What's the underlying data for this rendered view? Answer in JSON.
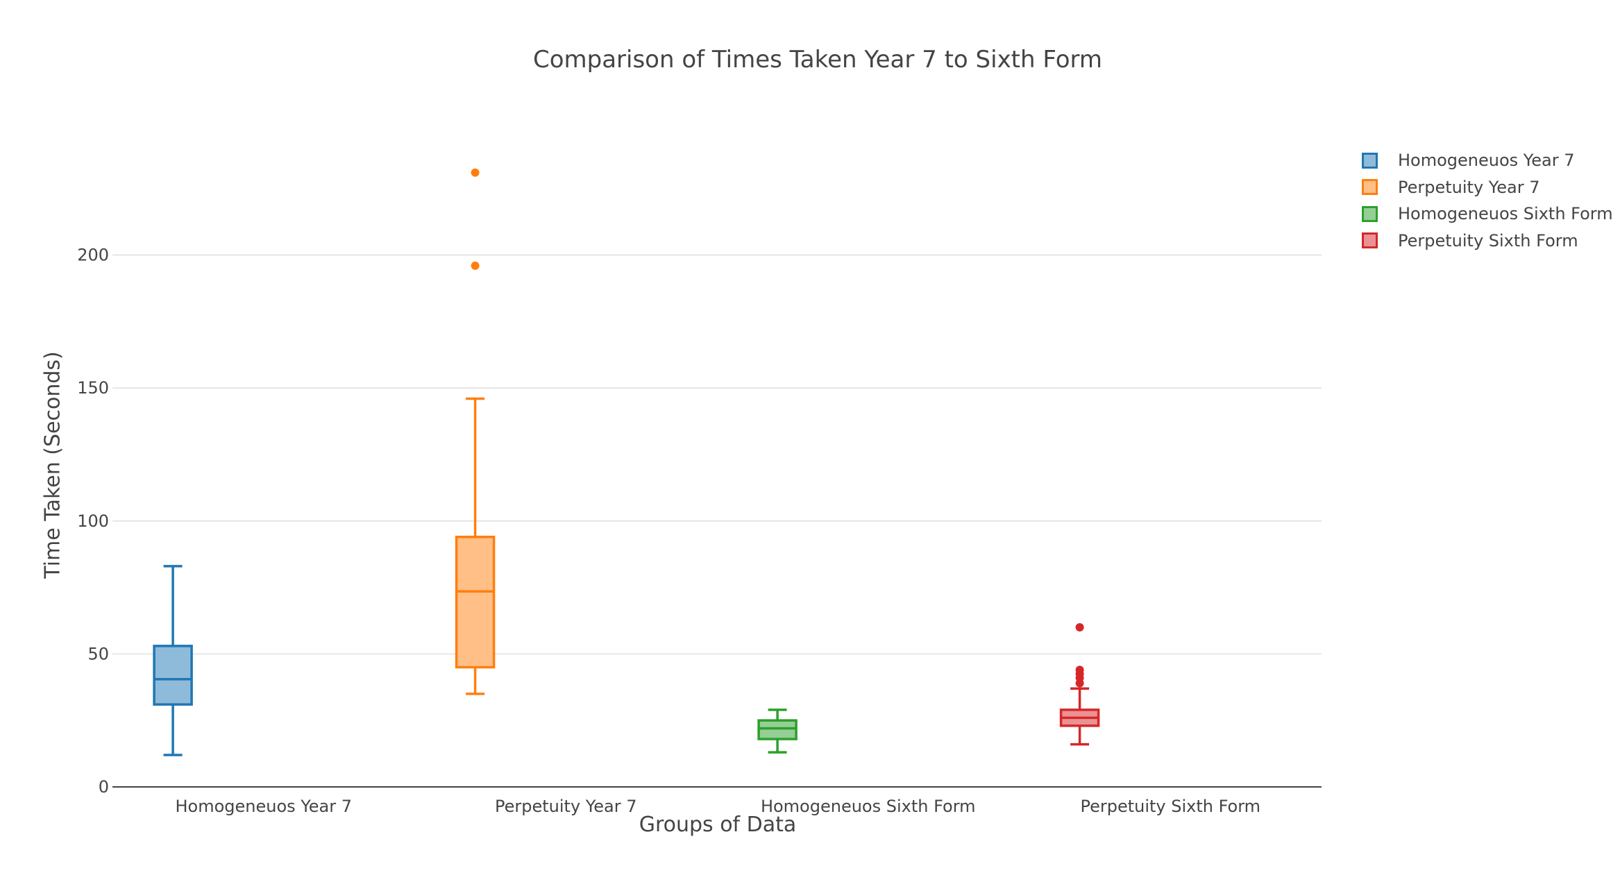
{
  "chart_data": {
    "type": "box",
    "title": "Comparison of Times Taken Year 7 to Sixth Form",
    "xlabel": "Groups of Data",
    "ylabel": "Time Taken (Seconds)",
    "ylim": [
      0,
      240
    ],
    "yticks": [
      0,
      50,
      100,
      150,
      200
    ],
    "grid": true,
    "legend_position": "top-right",
    "categories": [
      "Homogeneuos Year 7",
      "Perpetuity Year 7",
      "Homogeneuos Sixth Form",
      "Perpetuity Sixth Form"
    ],
    "series": [
      {
        "name": "Homogeneuos Year 7",
        "color": "#1f77b4",
        "fill": "#8fbbda",
        "min": 12,
        "q1": 31,
        "median": 40.5,
        "q3": 53,
        "max": 83,
        "outliers": []
      },
      {
        "name": "Perpetuity Year 7",
        "color": "#ff7f0e",
        "fill": "#ffbf86",
        "min": 35,
        "q1": 45,
        "median": 73.5,
        "q3": 94,
        "max": 146,
        "outliers": [
          196,
          231
        ]
      },
      {
        "name": "Homogeneuos Sixth Form",
        "color": "#2ca02c",
        "fill": "#95cf95",
        "min": 13,
        "q1": 18,
        "median": 22,
        "q3": 25,
        "max": 29,
        "outliers": []
      },
      {
        "name": "Perpetuity Sixth Form",
        "color": "#d62728",
        "fill": "#ea9293",
        "min": 16,
        "q1": 23,
        "median": 26,
        "q3": 29,
        "max": 37,
        "outliers": [
          39,
          41,
          42.5,
          44,
          60
        ]
      }
    ]
  }
}
